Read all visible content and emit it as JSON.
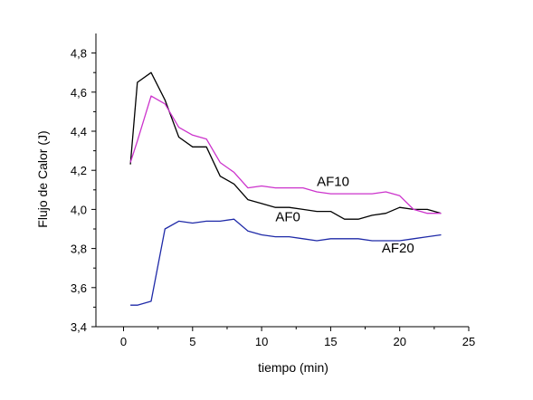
{
  "chart_data": {
    "type": "line",
    "xlabel": "tiempo (min)",
    "ylabel": "Flujo de Calor (J)",
    "xlim": [
      -2,
      25
    ],
    "ylim": [
      3.4,
      4.9
    ],
    "xticks": [
      0,
      5,
      10,
      15,
      20,
      25
    ],
    "xtick_labels": [
      "0",
      "5",
      "10",
      "15",
      "20",
      "25"
    ],
    "yticks": [
      3.4,
      3.6,
      3.8,
      4.0,
      4.2,
      4.4,
      4.6,
      4.8
    ],
    "ytick_labels": [
      "3,4",
      "3,6",
      "3,8",
      "4,0",
      "4,2",
      "4,4",
      "4,6",
      "4,8"
    ],
    "grid": false,
    "legend": "none",
    "series": [
      {
        "name": "AF0",
        "color": "#000000",
        "label_at": [
          11.0,
          3.94
        ],
        "points": [
          [
            0.5,
            4.23
          ],
          [
            1,
            4.65
          ],
          [
            2,
            4.7
          ],
          [
            3,
            4.56
          ],
          [
            4,
            4.37
          ],
          [
            5,
            4.32
          ],
          [
            6,
            4.32
          ],
          [
            7,
            4.17
          ],
          [
            8,
            4.13
          ],
          [
            9,
            4.05
          ],
          [
            10,
            4.03
          ],
          [
            11,
            4.01
          ],
          [
            12,
            4.01
          ],
          [
            13,
            4.0
          ],
          [
            14,
            3.99
          ],
          [
            15,
            3.99
          ],
          [
            16,
            3.95
          ],
          [
            17,
            3.95
          ],
          [
            18,
            3.97
          ],
          [
            19,
            3.98
          ],
          [
            20,
            4.01
          ],
          [
            21,
            4.0
          ],
          [
            22,
            4.0
          ],
          [
            23,
            3.98
          ]
        ]
      },
      {
        "name": "AF10",
        "color": "#cc33cc",
        "label_at": [
          14.0,
          4.12
        ],
        "points": [
          [
            0.5,
            4.24
          ],
          [
            1,
            4.35
          ],
          [
            2,
            4.58
          ],
          [
            3,
            4.54
          ],
          [
            4,
            4.42
          ],
          [
            5,
            4.38
          ],
          [
            6,
            4.36
          ],
          [
            7,
            4.24
          ],
          [
            8,
            4.19
          ],
          [
            9,
            4.11
          ],
          [
            10,
            4.12
          ],
          [
            11,
            4.11
          ],
          [
            12,
            4.11
          ],
          [
            13,
            4.11
          ],
          [
            14,
            4.09
          ],
          [
            15,
            4.08
          ],
          [
            16,
            4.08
          ],
          [
            17,
            4.08
          ],
          [
            18,
            4.08
          ],
          [
            19,
            4.09
          ],
          [
            20,
            4.07
          ],
          [
            21,
            4.0
          ],
          [
            22,
            3.98
          ],
          [
            23,
            3.98
          ]
        ]
      },
      {
        "name": "AF20",
        "color": "#1f2aa8",
        "label_at": [
          18.7,
          3.78
        ],
        "points": [
          [
            0.5,
            3.51
          ],
          [
            1,
            3.51
          ],
          [
            2,
            3.53
          ],
          [
            3,
            3.9
          ],
          [
            4,
            3.94
          ],
          [
            5,
            3.93
          ],
          [
            6,
            3.94
          ],
          [
            7,
            3.94
          ],
          [
            8,
            3.95
          ],
          [
            9,
            3.89
          ],
          [
            10,
            3.87
          ],
          [
            11,
            3.86
          ],
          [
            12,
            3.86
          ],
          [
            13,
            3.85
          ],
          [
            14,
            3.84
          ],
          [
            15,
            3.85
          ],
          [
            16,
            3.85
          ],
          [
            17,
            3.85
          ],
          [
            18,
            3.84
          ],
          [
            19,
            3.84
          ],
          [
            20,
            3.84
          ],
          [
            21,
            3.85
          ],
          [
            22,
            3.86
          ],
          [
            23,
            3.87
          ]
        ]
      }
    ]
  }
}
